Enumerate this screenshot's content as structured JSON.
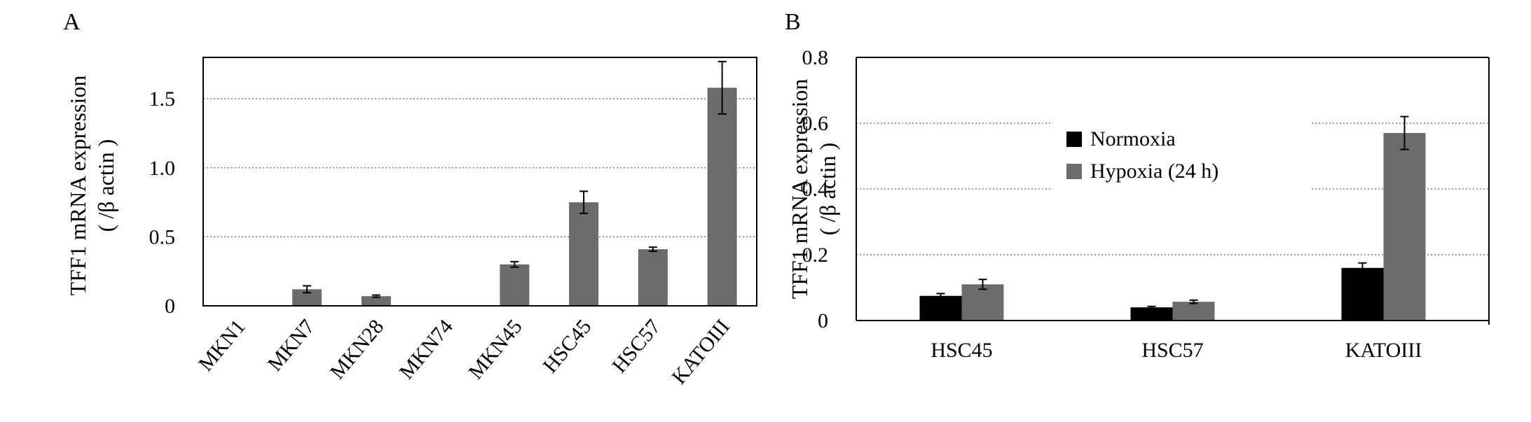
{
  "chart_data": [
    {
      "panel": "A",
      "type": "bar",
      "ylabel_line1": "TFF1 mRNA expression",
      "ylabel_line2": "( /β actin )",
      "categories": [
        "MKN1",
        "MKN7",
        "MKN28",
        "MKN74",
        "MKN45",
        "HSC45",
        "HSC57",
        "KATOIII"
      ],
      "values": [
        0.005,
        0.12,
        0.07,
        0.005,
        0.3,
        0.75,
        0.41,
        1.58
      ],
      "errors": [
        0.0,
        0.025,
        0.008,
        0.0,
        0.02,
        0.08,
        0.015,
        0.19
      ],
      "ylim": [
        0,
        1.8
      ],
      "yticks": [
        0,
        0.5,
        1.0,
        1.5
      ],
      "ytick_labels": [
        "0",
        "0.5",
        "1.0",
        "1.5"
      ],
      "grid": "horizontal dotted",
      "colors": {
        "bar": "#6b6b6b"
      }
    },
    {
      "panel": "B",
      "type": "bar",
      "ylabel_line1": "TFF1 mRNA expression",
      "ylabel_line2": "( /β actin )",
      "categories": [
        "HSC45",
        "HSC57",
        "KATOIII"
      ],
      "series": [
        {
          "name": "Normoxia",
          "values": [
            0.075,
            0.04,
            0.16
          ],
          "errors": [
            0.007,
            0.003,
            0.015
          ],
          "color": "#000000"
        },
        {
          "name": "Hypoxia (24 h)",
          "values": [
            0.11,
            0.057,
            0.57
          ],
          "errors": [
            0.015,
            0.005,
            0.05
          ],
          "color": "#6b6b6b"
        }
      ],
      "ylim": [
        0,
        0.8
      ],
      "yticks": [
        0,
        0.2,
        0.4,
        0.6,
        0.8
      ],
      "ytick_labels": [
        "0",
        "0.2",
        "0.4",
        "0.6",
        "0.8"
      ],
      "grid": "horizontal dotted",
      "legend_position": "upper-center"
    }
  ]
}
